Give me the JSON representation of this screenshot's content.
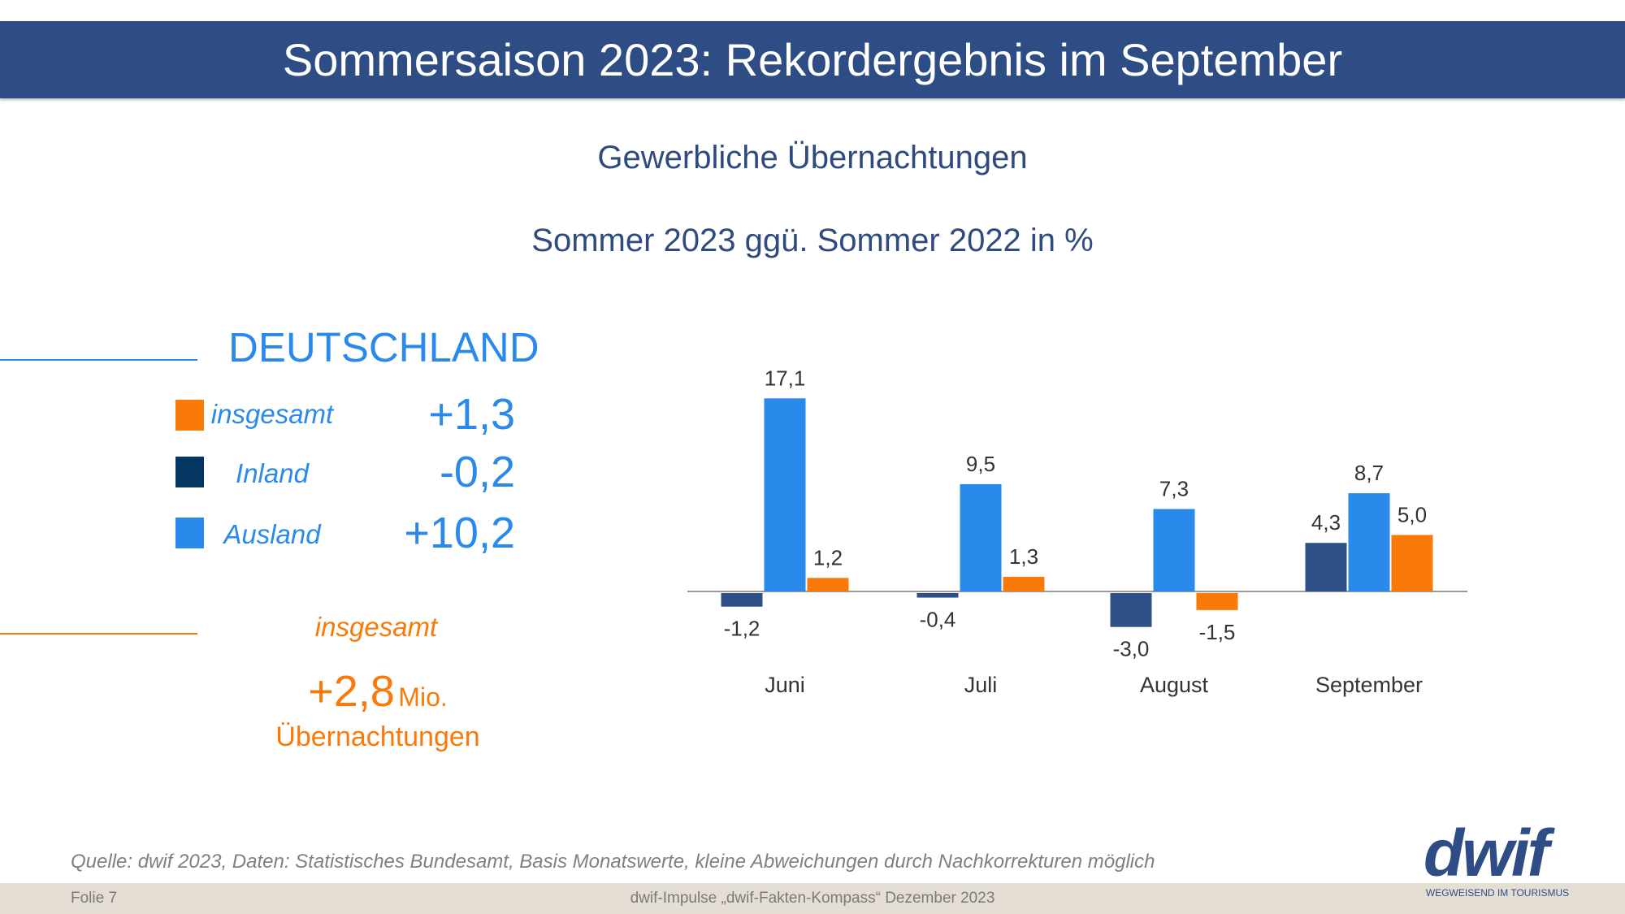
{
  "header": {
    "title": "Sommersaison 2023: Rekordergebnis im September"
  },
  "subtitle": "Gewerbliche Übernachtungen",
  "subtitle2": "Sommer 2023 ggü. Sommer 2022 in %",
  "deutschland": {
    "title": "DEUTSCHLAND",
    "rows": [
      {
        "label": "insgesamt",
        "value": "+1,3",
        "color": "#f97a08"
      },
      {
        "label": "Inland",
        "value": "-0,2",
        "color": "#033660"
      },
      {
        "label": "Ausland",
        "value": "+10,2",
        "color": "#2a8aec"
      }
    ],
    "total_label": "insgesamt",
    "total_value": "+2,8",
    "total_unit": "Mio.",
    "total_sub": "Übernachtungen"
  },
  "chart_data": {
    "type": "bar",
    "categories": [
      "Juni",
      "Juli",
      "August",
      "September"
    ],
    "series": [
      {
        "name": "Inland",
        "values": [
          -1.2,
          -0.4,
          -3.0,
          4.3
        ],
        "labels": [
          "-1,2",
          "-0,4",
          "-3,0",
          "4,3"
        ],
        "color": "#2f4f87"
      },
      {
        "name": "Ausland",
        "values": [
          17.1,
          9.5,
          7.3,
          8.7
        ],
        "labels": [
          "17,1",
          "9,5",
          "7,3",
          "8,7"
        ],
        "color": "#2a8aec"
      },
      {
        "name": "insgesamt",
        "values": [
          1.2,
          1.3,
          -1.5,
          5.0
        ],
        "labels": [
          "1,2",
          "1,3",
          "-1,5",
          "5,0"
        ],
        "color": "#f97a08"
      }
    ],
    "grid": false
  },
  "footer": {
    "source": "Quelle: dwif 2023, Daten: Statistisches Bundesamt, Basis Monatswerte, kleine Abweichungen durch Nachkorrekturen möglich",
    "slide": "Folie 7",
    "center": "dwif-Impulse „dwif-Fakten-Kompass“ Dezember 2023",
    "logo": "dwif",
    "logo_tagline": "WEGWEISEND IM TOURISMUS"
  }
}
